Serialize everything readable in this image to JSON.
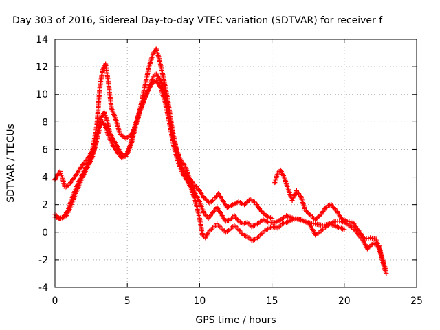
{
  "chart_data": {
    "type": "scatter",
    "title": "Day 303 of 2016, Sidereal Day-to-day VTEC variation (SDTVAR) for receiver f",
    "xlabel": "GPS time / hours",
    "ylabel": "SDTVAR / TECUs",
    "xlim": [
      0,
      25
    ],
    "ylim": [
      -4,
      14
    ],
    "xticks": [
      0,
      5,
      10,
      15,
      20,
      25
    ],
    "yticks": [
      -4,
      -2,
      0,
      2,
      4,
      6,
      8,
      10,
      12,
      14
    ],
    "grid": true,
    "marker": "+",
    "color": "#ff0000",
    "series": [
      {
        "points": [
          [
            0.0,
            3.8
          ],
          [
            0.2,
            4.2
          ],
          [
            0.35,
            4.4
          ],
          [
            0.5,
            4.0
          ],
          [
            0.7,
            3.2
          ],
          [
            1.0,
            3.5
          ],
          [
            1.3,
            3.9
          ],
          [
            1.6,
            4.4
          ],
          [
            2.0,
            5.0
          ],
          [
            2.3,
            5.4
          ],
          [
            2.6,
            6.0
          ],
          [
            2.9,
            7.8
          ],
          [
            3.1,
            10.5
          ],
          [
            3.3,
            11.8
          ],
          [
            3.5,
            12.2
          ],
          [
            3.7,
            10.8
          ],
          [
            3.9,
            9.0
          ],
          [
            4.2,
            8.2
          ],
          [
            4.5,
            7.1
          ],
          [
            4.9,
            6.8
          ],
          [
            5.3,
            7.1
          ],
          [
            5.6,
            7.8
          ],
          [
            5.9,
            9.0
          ],
          [
            6.2,
            10.5
          ],
          [
            6.5,
            12.0
          ],
          [
            6.8,
            13.0
          ],
          [
            7.0,
            13.3
          ],
          [
            7.2,
            12.6
          ],
          [
            7.5,
            11.2
          ],
          [
            7.8,
            9.6
          ],
          [
            8.1,
            7.5
          ],
          [
            8.4,
            6.0
          ],
          [
            8.7,
            5.2
          ],
          [
            9.0,
            4.8
          ],
          [
            9.3,
            3.9
          ],
          [
            9.6,
            3.5
          ],
          [
            10.0,
            3.0
          ],
          [
            10.3,
            2.5
          ],
          [
            10.7,
            2.1
          ],
          [
            11.0,
            2.4
          ],
          [
            11.3,
            2.8
          ],
          [
            11.6,
            2.3
          ],
          [
            11.9,
            1.8
          ],
          [
            12.3,
            2.0
          ],
          [
            12.7,
            2.2
          ],
          [
            13.1,
            2.0
          ],
          [
            13.5,
            2.4
          ],
          [
            13.9,
            2.1
          ],
          [
            14.2,
            1.6
          ],
          [
            14.6,
            1.2
          ],
          [
            15.0,
            1.0
          ]
        ]
      },
      {
        "points": [
          [
            15.2,
            3.6
          ],
          [
            15.4,
            4.3
          ],
          [
            15.6,
            4.5
          ],
          [
            15.8,
            4.1
          ],
          [
            16.1,
            3.2
          ],
          [
            16.4,
            2.3
          ],
          [
            16.7,
            3.0
          ],
          [
            17.0,
            2.6
          ],
          [
            17.3,
            1.6
          ],
          [
            17.7,
            1.2
          ],
          [
            18.0,
            0.9
          ],
          [
            18.4,
            1.3
          ],
          [
            18.8,
            1.9
          ],
          [
            19.1,
            2.0
          ],
          [
            19.5,
            1.5
          ],
          [
            19.8,
            1.0
          ],
          [
            20.2,
            0.8
          ],
          [
            20.6,
            0.7
          ],
          [
            21.0,
            0.1
          ],
          [
            21.4,
            -0.5
          ],
          [
            21.8,
            -0.4
          ],
          [
            22.2,
            -0.5
          ],
          [
            22.5,
            -1.5
          ],
          [
            22.7,
            -2.3
          ],
          [
            22.9,
            -3.0
          ]
        ]
      },
      {
        "points": [
          [
            0.0,
            1.3
          ],
          [
            0.3,
            1.0
          ],
          [
            0.6,
            1.1
          ],
          [
            0.9,
            1.6
          ],
          [
            1.2,
            2.5
          ],
          [
            1.5,
            3.3
          ],
          [
            1.8,
            4.0
          ],
          [
            2.1,
            4.6
          ],
          [
            2.4,
            5.2
          ],
          [
            2.7,
            6.0
          ],
          [
            3.0,
            7.5
          ],
          [
            3.2,
            8.3
          ],
          [
            3.4,
            8.7
          ],
          [
            3.6,
            8.1
          ],
          [
            3.8,
            7.2
          ],
          [
            4.1,
            6.6
          ],
          [
            4.4,
            6.0
          ],
          [
            4.7,
            5.5
          ],
          [
            5.0,
            5.7
          ],
          [
            5.3,
            6.5
          ],
          [
            5.6,
            7.8
          ],
          [
            5.9,
            8.8
          ],
          [
            6.2,
            9.7
          ],
          [
            6.5,
            10.5
          ],
          [
            6.8,
            11.3
          ],
          [
            7.0,
            11.5
          ],
          [
            7.3,
            11.0
          ],
          [
            7.6,
            10.0
          ],
          [
            7.9,
            8.6
          ],
          [
            8.2,
            6.8
          ],
          [
            8.5,
            5.5
          ],
          [
            8.8,
            4.6
          ],
          [
            9.1,
            4.1
          ],
          [
            9.4,
            3.6
          ],
          [
            9.7,
            2.8
          ],
          [
            10.0,
            2.2
          ],
          [
            10.3,
            1.4
          ],
          [
            10.6,
            1.0
          ],
          [
            10.9,
            1.4
          ],
          [
            11.2,
            1.8
          ],
          [
            11.5,
            1.3
          ],
          [
            11.8,
            0.8
          ],
          [
            12.1,
            0.9
          ],
          [
            12.4,
            1.2
          ],
          [
            12.7,
            0.8
          ],
          [
            13.0,
            0.6
          ],
          [
            13.3,
            0.7
          ],
          [
            13.6,
            0.4
          ],
          [
            14.0,
            0.6
          ],
          [
            14.4,
            0.9
          ],
          [
            14.8,
            0.7
          ],
          [
            15.2,
            0.7
          ],
          [
            15.6,
            0.9
          ],
          [
            16.0,
            1.2
          ],
          [
            16.5,
            1.0
          ],
          [
            17.0,
            0.9
          ],
          [
            17.5,
            0.7
          ],
          [
            18.0,
            0.6
          ],
          [
            18.5,
            0.5
          ],
          [
            19.0,
            0.6
          ],
          [
            19.5,
            0.4
          ],
          [
            20.0,
            0.2
          ]
        ]
      },
      {
        "points": [
          [
            0.0,
            1.1
          ],
          [
            0.4,
            1.0
          ],
          [
            0.8,
            1.2
          ],
          [
            1.1,
            1.9
          ],
          [
            1.4,
            2.7
          ],
          [
            1.7,
            3.5
          ],
          [
            2.0,
            4.2
          ],
          [
            2.3,
            4.8
          ],
          [
            2.6,
            5.5
          ],
          [
            2.9,
            6.7
          ],
          [
            3.1,
            7.6
          ],
          [
            3.3,
            8.0
          ],
          [
            3.5,
            7.6
          ],
          [
            3.7,
            7.0
          ],
          [
            4.0,
            6.3
          ],
          [
            4.3,
            5.8
          ],
          [
            4.6,
            5.4
          ],
          [
            4.9,
            5.5
          ],
          [
            5.2,
            6.3
          ],
          [
            5.5,
            7.6
          ],
          [
            5.8,
            8.6
          ],
          [
            6.1,
            9.4
          ],
          [
            6.4,
            10.2
          ],
          [
            6.7,
            10.8
          ],
          [
            7.0,
            11.0
          ],
          [
            7.3,
            10.5
          ],
          [
            7.6,
            9.5
          ],
          [
            7.9,
            8.0
          ],
          [
            8.2,
            6.3
          ],
          [
            8.5,
            5.1
          ],
          [
            8.8,
            4.3
          ],
          [
            9.1,
            3.8
          ],
          [
            9.4,
            3.2
          ],
          [
            9.7,
            2.3
          ],
          [
            10.0,
            1.0
          ],
          [
            10.2,
            -0.2
          ],
          [
            10.4,
            -0.4
          ],
          [
            10.6,
            0.0
          ],
          [
            10.9,
            0.3
          ],
          [
            11.2,
            0.6
          ],
          [
            11.5,
            0.3
          ],
          [
            11.8,
            0.0
          ],
          [
            12.1,
            0.2
          ],
          [
            12.4,
            0.5
          ],
          [
            12.7,
            0.2
          ],
          [
            13.0,
            -0.2
          ],
          [
            13.3,
            -0.3
          ],
          [
            13.6,
            -0.6
          ],
          [
            13.9,
            -0.5
          ],
          [
            14.2,
            -0.2
          ],
          [
            14.5,
            0.1
          ],
          [
            14.8,
            0.3
          ],
          [
            15.1,
            0.4
          ],
          [
            15.4,
            0.3
          ],
          [
            15.7,
            0.6
          ],
          [
            16.0,
            0.7
          ],
          [
            16.4,
            0.9
          ],
          [
            16.8,
            1.0
          ],
          [
            17.2,
            0.8
          ],
          [
            17.6,
            0.6
          ],
          [
            18.0,
            -0.2
          ],
          [
            18.3,
            0.0
          ],
          [
            18.6,
            0.3
          ],
          [
            19.0,
            0.6
          ],
          [
            19.4,
            0.8
          ],
          [
            19.8,
            0.8
          ],
          [
            20.2,
            0.6
          ],
          [
            20.6,
            0.3
          ],
          [
            21.0,
            -0.2
          ],
          [
            21.3,
            -0.6
          ],
          [
            21.6,
            -1.2
          ],
          [
            22.0,
            -0.8
          ],
          [
            22.4,
            -1.0
          ],
          [
            22.6,
            -1.8
          ],
          [
            22.8,
            -2.5
          ],
          [
            22.9,
            -3.0
          ]
        ]
      }
    ]
  }
}
